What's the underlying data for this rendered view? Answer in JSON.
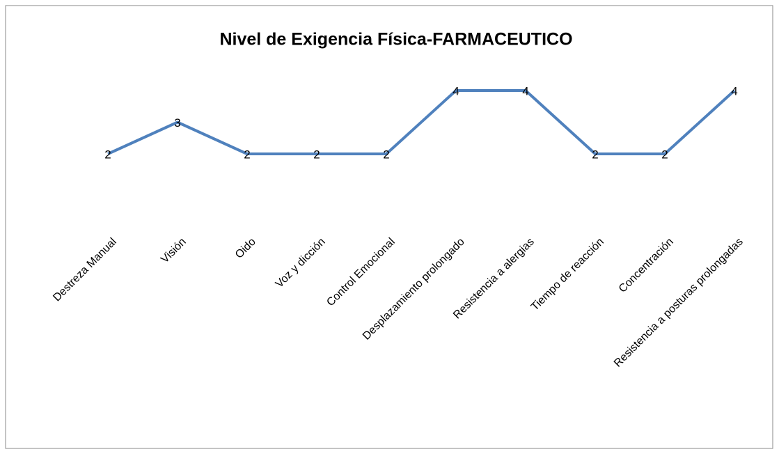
{
  "chart_data": {
    "type": "line",
    "title": "Nivel de Exigencia Física-FARMACEUTICO",
    "categories": [
      "Destreza Manual",
      "Visión",
      "Oido",
      "Voz y dicción",
      "Control Emocional",
      "Desplazamiento prolongado",
      "Resistencia a alergias",
      "Tiempo de reacción",
      "Concentración",
      "Resistencia a posturas prolongadas"
    ],
    "values": [
      2,
      3,
      2,
      2,
      2,
      4,
      4,
      2,
      2,
      4
    ],
    "color": "#4f81bd",
    "ylim": [
      0,
      5
    ]
  }
}
